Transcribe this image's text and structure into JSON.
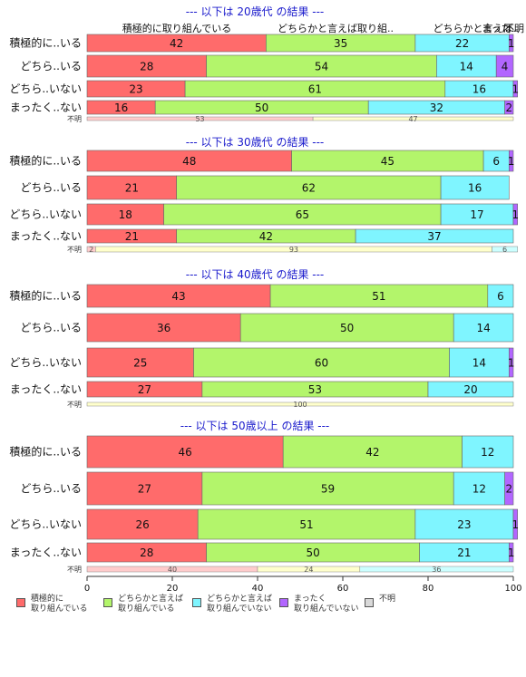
{
  "chart_data": {
    "type": "bar",
    "orientation": "horizontal",
    "stacked": true,
    "xlim": [
      0,
      100
    ],
    "x_ticks": [
      "0",
      "20",
      "40",
      "60",
      "80",
      "100"
    ],
    "grid": false,
    "legend_position": "bottom",
    "legend": [
      {
        "label": "積極的に\n取り組んでいる",
        "color": "#ff6b6b"
      },
      {
        "label": "どちらかと言えば\n取り組んでいる",
        "color": "#b3f56b"
      },
      {
        "label": "どちらかと言えば\n取り組んでいない",
        "color": "#7ff5ff"
      },
      {
        "label": "まったく\n取り組んでいない",
        "color": "#b266ff"
      },
      {
        "label": "不明",
        "color": "#d9d9d9"
      }
    ],
    "column_headers": [
      "積極的に取り組んでいる",
      "どちらかと言えば取り組..",
      "どちらかと言えば..",
      "まった..",
      "不明"
    ],
    "panels": [
      {
        "title": "--- 以下は 20歳代 の結果 ---",
        "rows": [
          {
            "label": "積極的に..いる",
            "values": [
              42,
              35,
              22,
              1
            ]
          },
          {
            "label": "どちら..いる",
            "values": [
              28,
              54,
              14,
              4
            ]
          },
          {
            "label": "どちら..いない",
            "values": [
              23,
              61,
              16,
              1
            ]
          },
          {
            "label": "まったく..ない",
            "values": [
              16,
              50,
              32,
              2
            ]
          }
        ],
        "unknown": {
          "label": "不明",
          "values": [
            53,
            47,
            0
          ]
        }
      },
      {
        "title": "--- 以下は 30歳代 の結果 ---",
        "rows": [
          {
            "label": "積極的に..いる",
            "values": [
              48,
              45,
              6,
              1
            ]
          },
          {
            "label": "どちら..いる",
            "values": [
              21,
              62,
              16,
              0
            ]
          },
          {
            "label": "どちら..いない",
            "values": [
              18,
              65,
              17,
              1
            ]
          },
          {
            "label": "まったく..ない",
            "values": [
              21,
              42,
              37,
              0
            ]
          }
        ],
        "unknown": {
          "label": "不明",
          "values": [
            2,
            93,
            6
          ]
        }
      },
      {
        "title": "--- 以下は 40歳代 の結果 ---",
        "rows": [
          {
            "label": "積極的に..いる",
            "values": [
              43,
              51,
              6,
              0
            ]
          },
          {
            "label": "どちら..いる",
            "values": [
              36,
              50,
              14,
              0
            ]
          },
          {
            "label": "どちら..いない",
            "values": [
              25,
              60,
              14,
              1
            ]
          },
          {
            "label": "まったく..ない",
            "values": [
              27,
              53,
              20,
              0
            ]
          }
        ],
        "unknown": {
          "label": "不明",
          "values": [
            0,
            100,
            0
          ]
        }
      },
      {
        "title": "--- 以下は 50歳以上 の結果 ---",
        "rows": [
          {
            "label": "積極的に..いる",
            "values": [
              46,
              42,
              12,
              0
            ]
          },
          {
            "label": "どちら..いる",
            "values": [
              27,
              59,
              12,
              2
            ]
          },
          {
            "label": "どちら..いない",
            "values": [
              26,
              51,
              23,
              1
            ]
          },
          {
            "label": "まったく..ない",
            "values": [
              28,
              50,
              21,
              1
            ]
          }
        ],
        "unknown": {
          "label": "不明",
          "values": [
            40,
            24,
            36
          ]
        }
      }
    ],
    "colors": {
      "series": [
        "#ff6b6b",
        "#b3f56b",
        "#7ff5ff",
        "#b266ff"
      ],
      "unknown_series": [
        "#ffcccc",
        "#ffffcc",
        "#ccffff"
      ],
      "title": "#1a1acc"
    }
  }
}
